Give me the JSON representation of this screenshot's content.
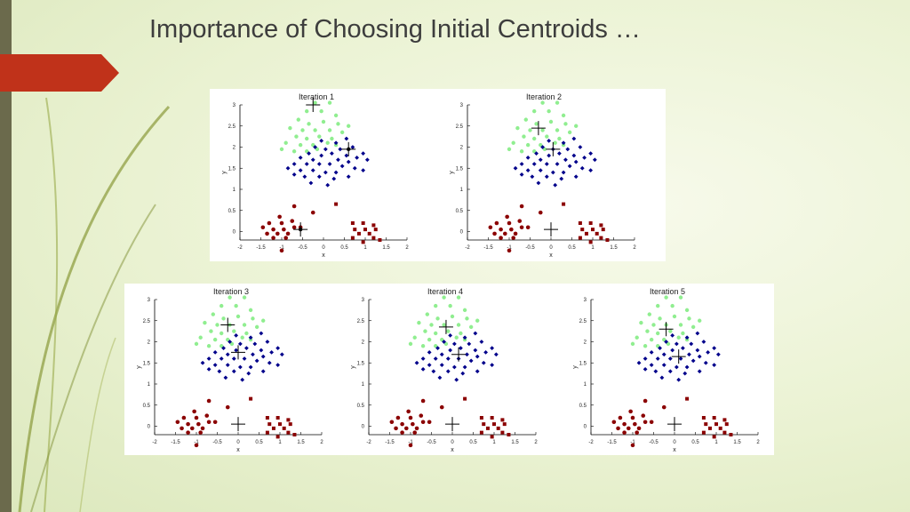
{
  "slide": {
    "title": "Importance of Choosing Initial Centroids …"
  },
  "colors": {
    "left_bar": "#6b6a4c",
    "accent_arrow": "#c0321a",
    "cluster_green": "#90ee90",
    "cluster_blue": "#00008b",
    "cluster_red": "#8b0000",
    "centroid_marker": "#000000"
  },
  "chart_data": [
    {
      "type": "scatter",
      "title": "Iteration 1",
      "xlabel": "x",
      "ylabel": "y",
      "xlim": [
        -2,
        2
      ],
      "ylim": [
        -0.2,
        3
      ],
      "xticks": [
        "-2",
        "-1.5",
        "-1",
        "-0.5",
        "0",
        "0.5",
        "1",
        "1.5",
        "2"
      ],
      "yticks": [
        "0",
        "0.5",
        "1",
        "1.5",
        "2",
        "2.5",
        "3"
      ],
      "centroids": [
        {
          "x": -0.25,
          "y": 3.0
        },
        {
          "x": 0.6,
          "y": 1.95
        },
        {
          "x": -0.55,
          "y": 0.05
        }
      ],
      "centroid_dots": [
        1,
        2
      ]
    },
    {
      "type": "scatter",
      "title": "Iteration 2",
      "xlabel": "x",
      "ylabel": "y",
      "xlim": [
        -2,
        2
      ],
      "ylim": [
        -0.2,
        3
      ],
      "xticks": [
        "-2",
        "-1.5",
        "-1",
        "-0.5",
        "0",
        "0.5",
        "1",
        "1.5",
        "2"
      ],
      "yticks": [
        "0",
        "0.5",
        "1",
        "1.5",
        "2",
        "2.5",
        "3"
      ],
      "centroids": [
        {
          "x": -0.3,
          "y": 2.45
        },
        {
          "x": 0.05,
          "y": 1.95
        },
        {
          "x": 0.0,
          "y": 0.05
        }
      ],
      "centroid_dots": []
    },
    {
      "type": "scatter",
      "title": "Iteration 3",
      "xlabel": "x",
      "ylabel": "y",
      "xlim": [
        -2,
        2
      ],
      "ylim": [
        -0.2,
        3
      ],
      "xticks": [
        "-2",
        "-1.5",
        "-1",
        "-0.5",
        "0",
        "0.5",
        "1",
        "1.5",
        "2"
      ],
      "yticks": [
        "0",
        "0.5",
        "1",
        "1.5",
        "2",
        "2.5",
        "3"
      ],
      "centroids": [
        {
          "x": -0.25,
          "y": 2.4
        },
        {
          "x": 0.0,
          "y": 1.75
        },
        {
          "x": 0.0,
          "y": 0.05
        }
      ],
      "centroid_dots": []
    },
    {
      "type": "scatter",
      "title": "Iteration 4",
      "xlabel": "x",
      "ylabel": "y",
      "xlim": [
        -2,
        2
      ],
      "ylim": [
        -0.2,
        3
      ],
      "xticks": [
        "-2",
        "-1.5",
        "-1",
        "-0.5",
        "0",
        "0.5",
        "1",
        "1.5",
        "2"
      ],
      "yticks": [
        "0",
        "0.5",
        "1",
        "1.5",
        "2",
        "2.5",
        "3"
      ],
      "centroids": [
        {
          "x": -0.15,
          "y": 2.35
        },
        {
          "x": 0.15,
          "y": 1.7
        },
        {
          "x": 0.0,
          "y": 0.05
        }
      ],
      "centroid_dots": []
    },
    {
      "type": "scatter",
      "title": "Iteration 5",
      "xlabel": "x",
      "ylabel": "y",
      "xlim": [
        -2,
        2
      ],
      "ylim": [
        -0.2,
        3
      ],
      "xticks": [
        "-2",
        "-1.5",
        "-1",
        "-0.5",
        "0",
        "0.5",
        "1",
        "1.5",
        "2"
      ],
      "yticks": [
        "0",
        "0.5",
        "1",
        "1.5",
        "2",
        "2.5",
        "3"
      ],
      "centroids": [
        {
          "x": -0.2,
          "y": 2.3
        },
        {
          "x": 0.1,
          "y": 1.65
        },
        {
          "x": 0.0,
          "y": 0.05
        }
      ],
      "centroid_dots": []
    }
  ],
  "points": {
    "green": [
      [
        -0.2,
        3.05
      ],
      [
        0.15,
        3.05
      ],
      [
        -0.4,
        2.85
      ],
      [
        -0.05,
        2.85
      ],
      [
        0.3,
        2.75
      ],
      [
        -0.6,
        2.65
      ],
      [
        -0.35,
        2.55
      ],
      [
        0.0,
        2.6
      ],
      [
        0.35,
        2.55
      ],
      [
        0.6,
        2.5
      ],
      [
        -0.8,
        2.45
      ],
      [
        -0.5,
        2.4
      ],
      [
        -0.2,
        2.4
      ],
      [
        0.15,
        2.4
      ],
      [
        0.45,
        2.35
      ],
      [
        -0.65,
        2.25
      ],
      [
        -0.4,
        2.2
      ],
      [
        -0.1,
        2.25
      ],
      [
        0.2,
        2.2
      ],
      [
        -0.9,
        2.1
      ],
      [
        -0.55,
        2.05
      ],
      [
        -0.25,
        2.05
      ],
      [
        0.1,
        2.1
      ],
      [
        -1.0,
        1.95
      ],
      [
        -0.7,
        1.9
      ],
      [
        -0.4,
        1.9
      ],
      [
        0.3,
        2.05
      ],
      [
        -0.15,
        1.95
      ]
    ],
    "blue": [
      [
        -0.05,
        2.15
      ],
      [
        0.3,
        2.1
      ],
      [
        0.55,
        2.2
      ],
      [
        -0.2,
        2.0
      ],
      [
        0.05,
        1.95
      ],
      [
        0.4,
        1.95
      ],
      [
        0.7,
        2.0
      ],
      [
        0.95,
        1.85
      ],
      [
        -0.35,
        1.85
      ],
      [
        -0.05,
        1.8
      ],
      [
        0.2,
        1.85
      ],
      [
        0.55,
        1.8
      ],
      [
        0.8,
        1.75
      ],
      [
        -0.55,
        1.75
      ],
      [
        -0.25,
        1.7
      ],
      [
        0.35,
        1.7
      ],
      [
        0.6,
        1.65
      ],
      [
        1.05,
        1.7
      ],
      [
        -0.7,
        1.6
      ],
      [
        -0.4,
        1.6
      ],
      [
        -0.1,
        1.6
      ],
      [
        0.15,
        1.6
      ],
      [
        0.45,
        1.55
      ],
      [
        0.75,
        1.5
      ],
      [
        -0.85,
        1.5
      ],
      [
        -0.55,
        1.45
      ],
      [
        -0.25,
        1.45
      ],
      [
        0.05,
        1.4
      ],
      [
        0.3,
        1.4
      ],
      [
        0.95,
        1.45
      ],
      [
        -0.45,
        1.3
      ],
      [
        -0.1,
        1.3
      ],
      [
        0.25,
        1.25
      ],
      [
        0.6,
        1.3
      ],
      [
        -0.3,
        1.15
      ],
      [
        0.1,
        1.1
      ],
      [
        -0.7,
        1.35
      ]
    ],
    "red": [
      [
        -1.05,
        0.35
      ],
      [
        -1.3,
        0.2
      ],
      [
        -1.0,
        0.2
      ],
      [
        -0.75,
        0.25
      ],
      [
        -1.45,
        0.1
      ],
      [
        -1.2,
        0.05
      ],
      [
        -0.95,
        0.05
      ],
      [
        -0.7,
        0.1
      ],
      [
        -1.35,
        -0.05
      ],
      [
        -1.1,
        -0.05
      ],
      [
        -0.85,
        -0.05
      ],
      [
        -1.2,
        -0.15
      ],
      [
        -0.9,
        -0.15
      ],
      [
        -1.0,
        -0.45
      ],
      [
        -0.55,
        0.1
      ],
      [
        -0.7,
        0.6
      ],
      [
        -0.25,
        0.45
      ],
      [
        0.3,
        0.65
      ],
      [
        0.7,
        0.2
      ],
      [
        0.95,
        0.2
      ],
      [
        1.2,
        0.15
      ],
      [
        0.75,
        0.05
      ],
      [
        1.0,
        0.05
      ],
      [
        1.25,
        0.05
      ],
      [
        0.85,
        -0.05
      ],
      [
        1.1,
        -0.05
      ],
      [
        0.7,
        -0.15
      ],
      [
        1.35,
        -0.2
      ],
      [
        0.95,
        -0.25
      ],
      [
        1.2,
        -0.15
      ]
    ]
  }
}
